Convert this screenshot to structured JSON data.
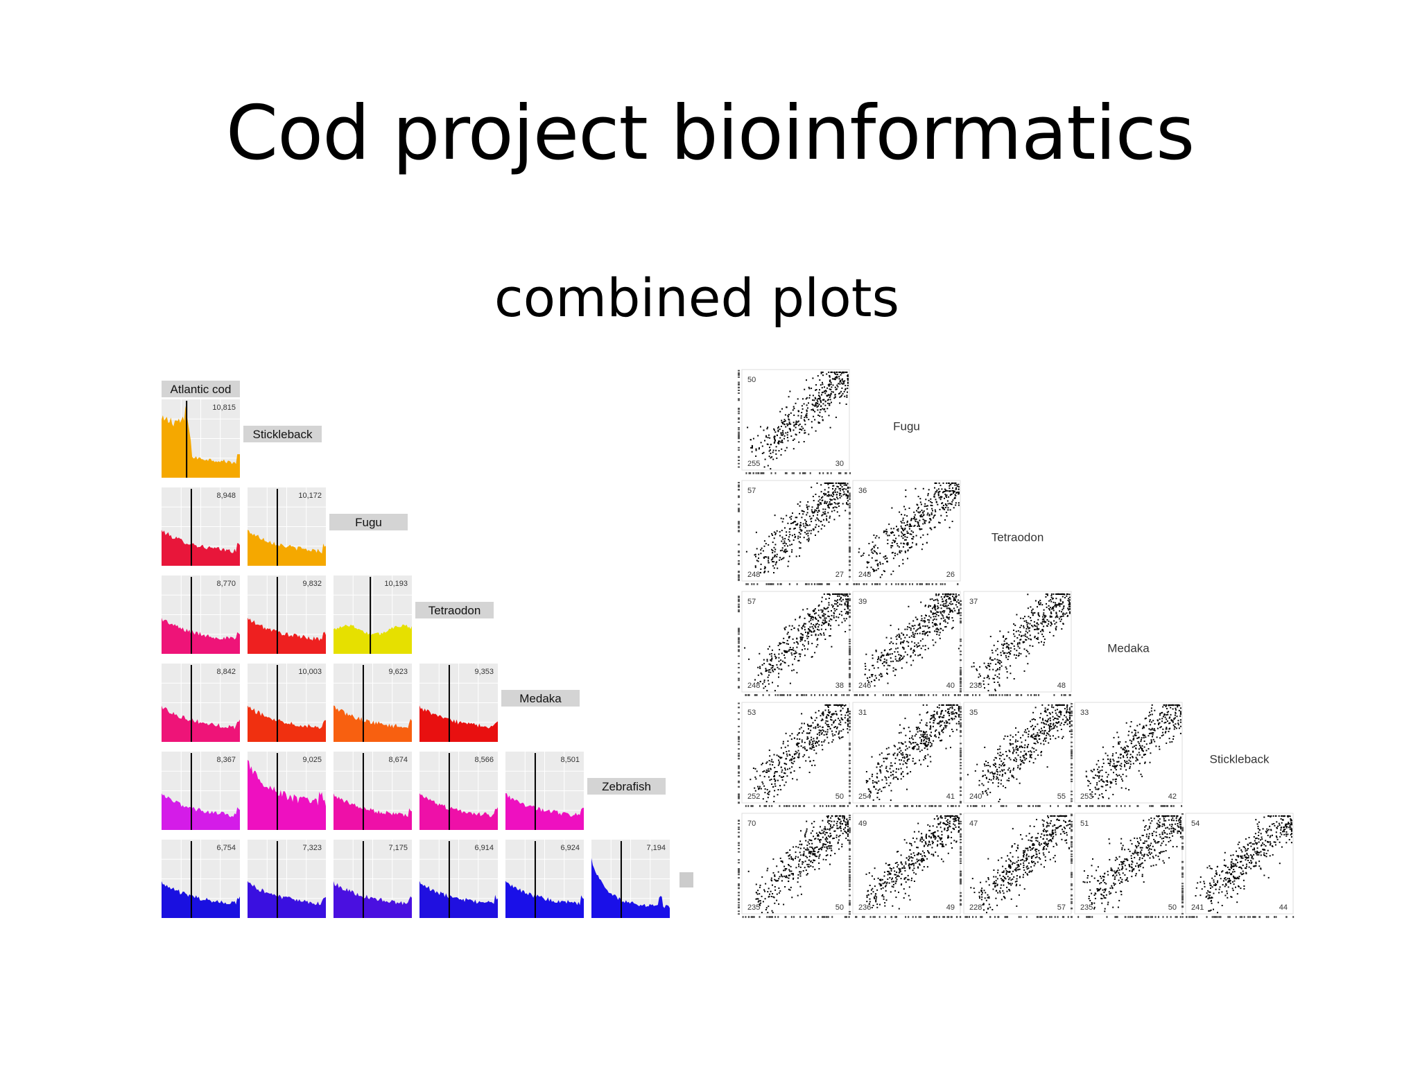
{
  "slide": {
    "title": "Cod project bioinformatics",
    "subtitle": "combined plots"
  },
  "chart_data": [
    {
      "type": "area",
      "description_of_layout": "lower-triangular grid of histograms",
      "species_labels": [
        "Atlantic cod",
        "Stickleback",
        "Fugu",
        "Tetraodon",
        "Medaka",
        "Zebrafish"
      ],
      "panels": [
        {
          "row": 0,
          "col": 0,
          "count": "10,815",
          "color": "#f5a800",
          "shape": "cod"
        },
        {
          "row": 1,
          "col": 0,
          "count": "8,948",
          "color": "#e8163a",
          "shape": "decay"
        },
        {
          "row": 1,
          "col": 1,
          "count": "10,172",
          "color": "#f5a800",
          "shape": "decay"
        },
        {
          "row": 2,
          "col": 0,
          "count": "8,770",
          "color": "#ee1478",
          "shape": "decay"
        },
        {
          "row": 2,
          "col": 1,
          "count": "9,832",
          "color": "#ee2020",
          "shape": "decay"
        },
        {
          "row": 2,
          "col": 2,
          "count": "10,193",
          "color": "#e6e000",
          "shape": "flat"
        },
        {
          "row": 3,
          "col": 0,
          "count": "8,842",
          "color": "#ee1478",
          "shape": "decay"
        },
        {
          "row": 3,
          "col": 1,
          "count": "10,003",
          "color": "#f03010",
          "shape": "decay"
        },
        {
          "row": 3,
          "col": 2,
          "count": "9,623",
          "color": "#f86010",
          "shape": "decay"
        },
        {
          "row": 3,
          "col": 3,
          "count": "9,353",
          "color": "#e81010",
          "shape": "decay"
        },
        {
          "row": 4,
          "col": 0,
          "count": "8,367",
          "color": "#d41ce8",
          "shape": "decay"
        },
        {
          "row": 4,
          "col": 1,
          "count": "9,025",
          "color": "#ee10c0",
          "shape": "spiky"
        },
        {
          "row": 4,
          "col": 2,
          "count": "8,674",
          "color": "#ee10a8",
          "shape": "decay"
        },
        {
          "row": 4,
          "col": 3,
          "count": "8,566",
          "color": "#ee10a8",
          "shape": "decay"
        },
        {
          "row": 4,
          "col": 4,
          "count": "8,501",
          "color": "#ee10c0",
          "shape": "decay"
        },
        {
          "row": 5,
          "col": 0,
          "count": "6,754",
          "color": "#1a10e0",
          "shape": "decay"
        },
        {
          "row": 5,
          "col": 1,
          "count": "7,323",
          "color": "#3a10e0",
          "shape": "decay"
        },
        {
          "row": 5,
          "col": 2,
          "count": "7,175",
          "color": "#4a10e0",
          "shape": "decay"
        },
        {
          "row": 5,
          "col": 3,
          "count": "6,914",
          "color": "#2010e0",
          "shape": "decay"
        },
        {
          "row": 5,
          "col": 4,
          "count": "6,924",
          "color": "#1a10e8",
          "shape": "decay"
        },
        {
          "row": 5,
          "col": 5,
          "count": "7,194",
          "color": "#1a10e8",
          "shape": "spike"
        }
      ],
      "legend_swatch_color": "#cccccc"
    },
    {
      "type": "scatter",
      "description_of_layout": "lower-triangular grid of scatter plots",
      "species_labels": [
        "Fugu",
        "Tetraodon",
        "Medaka",
        "Stickleback"
      ],
      "point_color": "#000000",
      "panels": [
        {
          "row": 0,
          "col": 0,
          "top_left": "50",
          "bottom_left": "255",
          "bottom_right": "30"
        },
        {
          "row": 1,
          "col": 0,
          "top_left": "57",
          "bottom_left": "248",
          "bottom_right": "27"
        },
        {
          "row": 1,
          "col": 1,
          "top_left": "36",
          "bottom_left": "248",
          "bottom_right": "26"
        },
        {
          "row": 2,
          "col": 0,
          "top_left": "57",
          "bottom_left": "248",
          "bottom_right": "38"
        },
        {
          "row": 2,
          "col": 1,
          "top_left": "39",
          "bottom_left": "246",
          "bottom_right": "40"
        },
        {
          "row": 2,
          "col": 2,
          "top_left": "37",
          "bottom_left": "238",
          "bottom_right": "48"
        },
        {
          "row": 3,
          "col": 0,
          "top_left": "53",
          "bottom_left": "252",
          "bottom_right": "50"
        },
        {
          "row": 3,
          "col": 1,
          "top_left": "31",
          "bottom_left": "254",
          "bottom_right": "41"
        },
        {
          "row": 3,
          "col": 2,
          "top_left": "35",
          "bottom_left": "240",
          "bottom_right": "55"
        },
        {
          "row": 3,
          "col": 3,
          "top_left": "33",
          "bottom_left": "253",
          "bottom_right": "42"
        },
        {
          "row": 4,
          "col": 0,
          "top_left": "70",
          "bottom_left": "235",
          "bottom_right": "50"
        },
        {
          "row": 4,
          "col": 1,
          "top_left": "49",
          "bottom_left": "236",
          "bottom_right": "49"
        },
        {
          "row": 4,
          "col": 2,
          "top_left": "47",
          "bottom_left": "228",
          "bottom_right": "57"
        },
        {
          "row": 4,
          "col": 3,
          "top_left": "51",
          "bottom_left": "235",
          "bottom_right": "50"
        },
        {
          "row": 4,
          "col": 4,
          "top_left": "54",
          "bottom_left": "241",
          "bottom_right": "44"
        }
      ]
    }
  ]
}
